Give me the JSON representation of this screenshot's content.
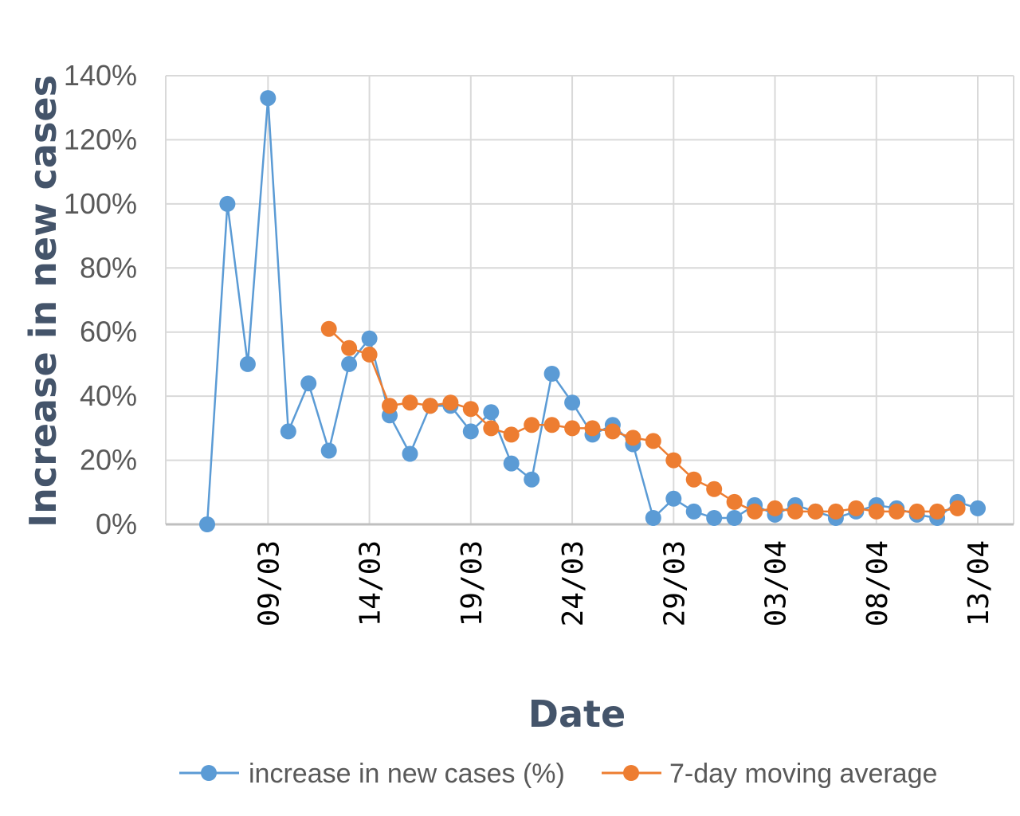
{
  "chart_data": {
    "type": "line",
    "title": "",
    "xlabel": "Date",
    "ylabel": "Increase in new cases",
    "ylim": [
      0,
      1.4
    ],
    "y_ticks": [
      "0%",
      "20%",
      "40%",
      "60%",
      "80%",
      "100%",
      "120%",
      "140%"
    ],
    "x_range": [
      "06/03",
      "13/04"
    ],
    "x_ticks": [
      "09/03",
      "14/03",
      "19/03",
      "24/03",
      "29/03",
      "03/04",
      "08/04",
      "13/04"
    ],
    "grid": true,
    "legend_position": "bottom",
    "colors": {
      "series1": "#5b9bd5",
      "series2": "#ed7d31",
      "grid": "#d9d9d9"
    },
    "series": [
      {
        "name": "increase in new cases (%)",
        "color": "#5b9bd5",
        "points": [
          [
            "06/03",
            0.0
          ],
          [
            "07/03",
            1.0
          ],
          [
            "08/03",
            0.5
          ],
          [
            "09/03",
            1.33
          ],
          [
            "10/03",
            0.29
          ],
          [
            "11/03",
            0.44
          ],
          [
            "12/03",
            0.23
          ],
          [
            "13/03",
            0.5
          ],
          [
            "14/03",
            0.58
          ],
          [
            "15/03",
            0.34
          ],
          [
            "16/03",
            0.22
          ],
          [
            "17/03",
            0.37
          ],
          [
            "18/03",
            0.37
          ],
          [
            "19/03",
            0.29
          ],
          [
            "20/03",
            0.35
          ],
          [
            "21/03",
            0.19
          ],
          [
            "22/03",
            0.14
          ],
          [
            "23/03",
            0.47
          ],
          [
            "24/03",
            0.38
          ],
          [
            "25/03",
            0.28
          ],
          [
            "26/03",
            0.31
          ],
          [
            "27/03",
            0.25
          ],
          [
            "28/03",
            0.02
          ],
          [
            "29/03",
            0.08
          ],
          [
            "30/03",
            0.04
          ],
          [
            "31/03",
            0.02
          ],
          [
            "01/04",
            0.02
          ],
          [
            "02/04",
            0.06
          ],
          [
            "03/04",
            0.03
          ],
          [
            "04/04",
            0.06
          ],
          [
            "05/04",
            0.04
          ],
          [
            "06/04",
            0.02
          ],
          [
            "07/04",
            0.04
          ],
          [
            "08/04",
            0.06
          ],
          [
            "09/04",
            0.05
          ],
          [
            "10/04",
            0.03
          ],
          [
            "11/04",
            0.02
          ],
          [
            "12/04",
            0.07
          ],
          [
            "13/04",
            0.05
          ]
        ]
      },
      {
        "name": "7-day moving average",
        "color": "#ed7d31",
        "points": [
          [
            "12/03",
            0.61
          ],
          [
            "13/03",
            0.55
          ],
          [
            "14/03",
            0.53
          ],
          [
            "15/03",
            0.37
          ],
          [
            "16/03",
            0.38
          ],
          [
            "17/03",
            0.37
          ],
          [
            "18/03",
            0.38
          ],
          [
            "19/03",
            0.36
          ],
          [
            "20/03",
            0.3
          ],
          [
            "21/03",
            0.28
          ],
          [
            "22/03",
            0.31
          ],
          [
            "23/03",
            0.31
          ],
          [
            "24/03",
            0.3
          ],
          [
            "25/03",
            0.3
          ],
          [
            "26/03",
            0.29
          ],
          [
            "27/03",
            0.27
          ],
          [
            "28/03",
            0.26
          ],
          [
            "29/03",
            0.2
          ],
          [
            "30/03",
            0.14
          ],
          [
            "31/03",
            0.11
          ],
          [
            "01/04",
            0.07
          ],
          [
            "02/04",
            0.04
          ],
          [
            "03/04",
            0.05
          ],
          [
            "04/04",
            0.04
          ],
          [
            "05/04",
            0.04
          ],
          [
            "06/04",
            0.04
          ],
          [
            "07/04",
            0.05
          ],
          [
            "08/04",
            0.04
          ],
          [
            "09/04",
            0.04
          ],
          [
            "10/04",
            0.04
          ],
          [
            "11/04",
            0.04
          ],
          [
            "12/04",
            0.05
          ]
        ]
      }
    ]
  }
}
